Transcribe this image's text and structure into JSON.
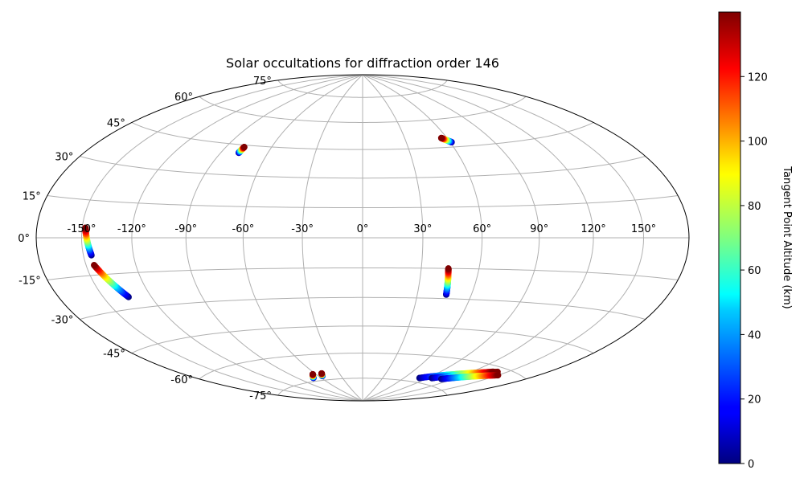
{
  "chart_data": {
    "type": "scatter",
    "projection": "hammer",
    "title": "Solar occultations for diffraction order 146",
    "lon_ticks": [
      -150,
      -120,
      -90,
      -60,
      -30,
      0,
      30,
      60,
      90,
      120,
      150
    ],
    "lon_tick_labels": [
      "-150°",
      "-120°",
      "-90°",
      "-60°",
      "-30°",
      "0°",
      "30°",
      "60°",
      "90°",
      "120°",
      "150°"
    ],
    "lat_ticks": [
      -75,
      -60,
      -45,
      -30,
      -15,
      0,
      15,
      30,
      45,
      60,
      75
    ],
    "lat_tick_labels": [
      "-75°",
      "-60°",
      "-45°",
      "-30°",
      "-15°",
      "0°",
      "15°",
      "30°",
      "45°",
      "60°",
      "75°"
    ],
    "grid": true,
    "colorbar": {
      "label": "Tangent Point Altitude (km)",
      "range": [
        0,
        140
      ],
      "ticks": [
        0,
        20,
        40,
        60,
        80,
        100,
        120
      ],
      "tick_labels": [
        "0",
        "20",
        "40",
        "60",
        "80",
        "100",
        "120"
      ],
      "colormap": "jet"
    },
    "tracks": [
      {
        "lon_top": -78,
        "lat_top": 44,
        "lon_bottom": -78.5,
        "lat_bottom": 41,
        "alt_top": 140,
        "alt_bottom": 0
      },
      {
        "lon_top": 56,
        "lat_top": 50,
        "lon_bottom": 61,
        "lat_bottom": 47.5,
        "alt_top": 140,
        "alt_bottom": 0
      },
      {
        "lon_top": -148,
        "lat_top": 4,
        "lon_bottom": -145,
        "lat_bottom": -7,
        "alt_top": 140,
        "alt_bottom": 0
      },
      {
        "lon_top": -145,
        "lat_top": -11,
        "lon_bottom": -134,
        "lat_bottom": -25,
        "alt_top": 140,
        "alt_bottom": 0
      },
      {
        "lon_top": 44,
        "lat_top": -15,
        "lon_bottom": 46,
        "lat_bottom": -28,
        "alt_top": 140,
        "alt_bottom": 0
      },
      {
        "lon_top": -64,
        "lat_top": -71,
        "lon_bottom": -70,
        "lat_bottom": -73,
        "alt_top": 140,
        "alt_bottom": 0
      },
      {
        "lon_top": -52,
        "lat_top": -71,
        "lon_bottom": -55,
        "lat_bottom": -72.5,
        "alt_top": 140,
        "alt_bottom": 0
      },
      {
        "lon_top": 142,
        "lat_top": -62,
        "lon_bottom": 80,
        "lat_bottom": -72.5,
        "alt_top": 140,
        "alt_bottom": 0
      },
      {
        "lon_top": 138,
        "lat_top": -62.5,
        "lon_bottom": 95,
        "lat_bottom": -71.5,
        "alt_top": 140,
        "alt_bottom": 0
      },
      {
        "lon_top": 150,
        "lat_top": -63,
        "lon_bottom": 108,
        "lat_bottom": -71,
        "alt_top": 140,
        "alt_bottom": 0
      }
    ]
  }
}
